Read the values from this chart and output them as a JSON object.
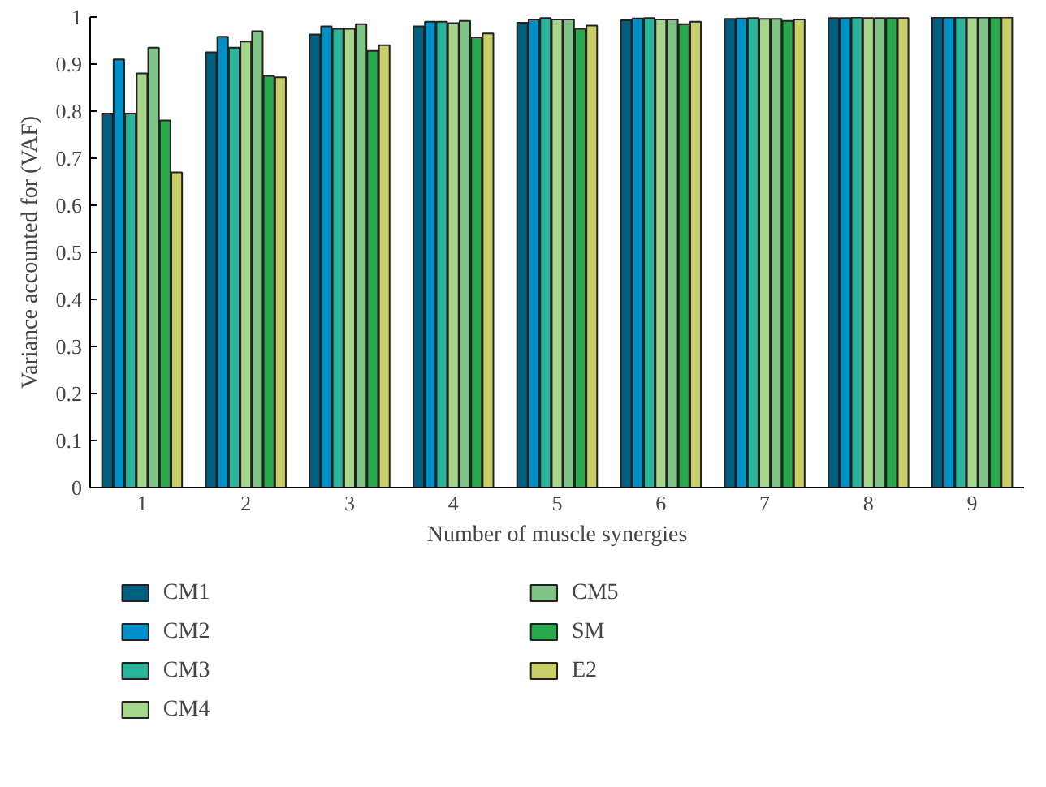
{
  "chart_data": {
    "type": "bar",
    "xlabel": "Number of muscle synergies",
    "ylabel": "Variance accounted for (VAF)",
    "categories": [
      "1",
      "2",
      "3",
      "4",
      "5",
      "6",
      "7",
      "8",
      "9"
    ],
    "ylim": [
      0,
      1
    ],
    "yticks": [
      0,
      0.1,
      0.2,
      0.3,
      0.4,
      0.5,
      0.6,
      0.7,
      0.8,
      0.9,
      1
    ],
    "grid": false,
    "legend": "bottom",
    "series": [
      {
        "name": "CM1",
        "color": "#005f7f",
        "values": [
          0.795,
          0.925,
          0.963,
          0.98,
          0.988,
          0.993,
          0.996,
          0.998,
          0.999
        ]
      },
      {
        "name": "CM2",
        "color": "#0090c8",
        "values": [
          0.91,
          0.958,
          0.98,
          0.99,
          0.995,
          0.997,
          0.997,
          0.998,
          0.999
        ]
      },
      {
        "name": "CM3",
        "color": "#2ab59a",
        "values": [
          0.795,
          0.935,
          0.975,
          0.99,
          0.998,
          0.998,
          0.998,
          0.999,
          0.999
        ]
      },
      {
        "name": "CM4",
        "color": "#a6d68a",
        "values": [
          0.88,
          0.948,
          0.975,
          0.987,
          0.995,
          0.995,
          0.996,
          0.998,
          0.999
        ]
      },
      {
        "name": "CM5",
        "color": "#80c587",
        "values": [
          0.935,
          0.97,
          0.985,
          0.992,
          0.995,
          0.995,
          0.996,
          0.998,
          0.999
        ]
      },
      {
        "name": "SM",
        "color": "#28a84a",
        "values": [
          0.78,
          0.875,
          0.928,
          0.957,
          0.975,
          0.985,
          0.992,
          0.998,
          0.999
        ]
      },
      {
        "name": "E2",
        "color": "#c9cf68",
        "values": [
          0.67,
          0.872,
          0.94,
          0.965,
          0.982,
          0.99,
          0.995,
          0.998,
          0.999
        ]
      }
    ]
  }
}
